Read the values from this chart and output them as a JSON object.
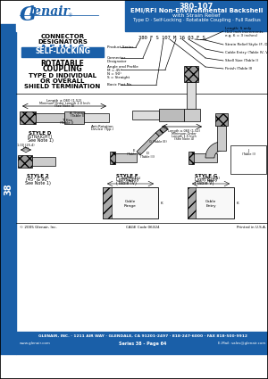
{
  "title_number": "380-107",
  "title_line1": "EMI/RFI Non-Environmental Backshell",
  "title_line2": "with Strain Relief",
  "title_line3": "Type D · Self-Locking · Rotatable Coupling · Full Radius",
  "header_bg": "#1a5fa8",
  "page_bg": "#ffffff",
  "page_num": "38",
  "footer_left": "© 2005 Glenair, Inc.",
  "footer_center": "CAGE Code 06324",
  "footer_right": "Printed in U.S.A.",
  "footer2": "GLENAIR, INC. · 1211 AIR WAY · GLENDALE, CA 91201-2497 · 818-247-6000 · FAX 818-500-9912",
  "footer3_left": "www.glenair.com",
  "footer3_center": "Series 38 - Page 64",
  "footer3_right": "E-Mail: sales@glenair.com"
}
